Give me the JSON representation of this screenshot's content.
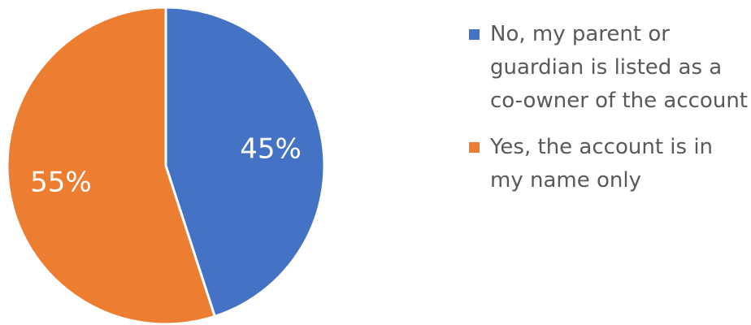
{
  "chart_data": {
    "type": "pie",
    "title": "",
    "categories": [
      "No, my parent or guardian is listed as a co-owner of the account",
      "Yes, the account is in my name only"
    ],
    "values": [
      45,
      55
    ],
    "labels": [
      "45%",
      "55%"
    ],
    "colors": [
      "#4472C4",
      "#ED7D31"
    ],
    "start_angle_deg": 0,
    "direction": "clockwise",
    "legend_position": "right",
    "slice_border_color": "#ffffff"
  }
}
